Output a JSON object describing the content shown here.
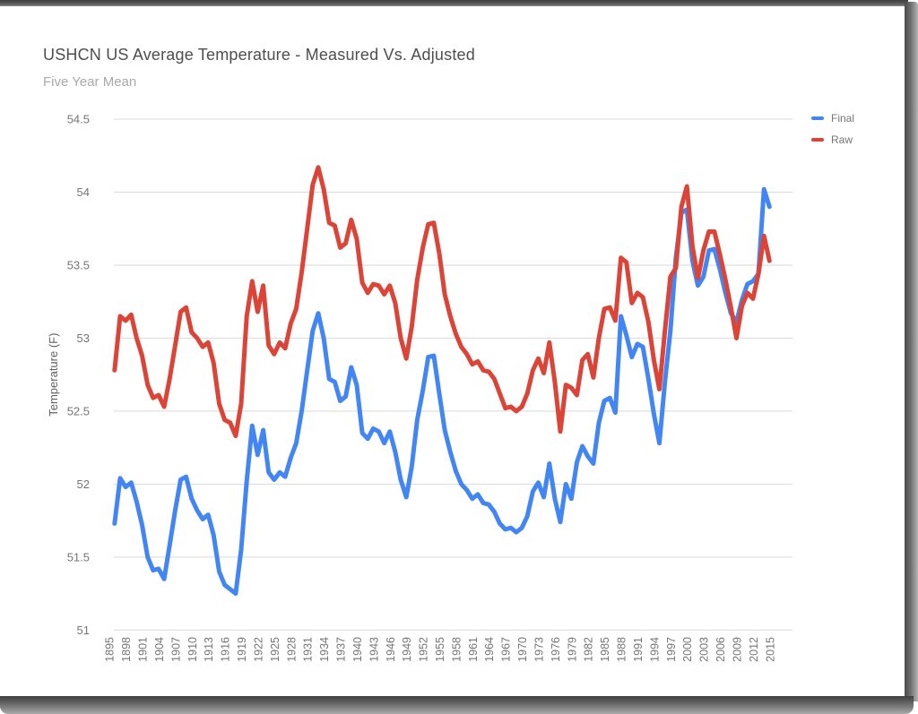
{
  "header": {
    "title": "USHCN US Average Temperature - Measured Vs. Adjusted",
    "subtitle": "Five Year Mean"
  },
  "legend": [
    {
      "label": "Final",
      "color": "#4285f4"
    },
    {
      "label": "Raw",
      "color": "#db4437"
    }
  ],
  "y_axis": {
    "title": "Temperature (F)",
    "ticks": [
      "54.5",
      "54",
      "53.5",
      "53",
      "52.5",
      "52",
      "51.5",
      "51"
    ]
  },
  "x_axis": {
    "ticks": [
      "1895",
      "1898",
      "1901",
      "1904",
      "1907",
      "1910",
      "1913",
      "1916",
      "1919",
      "1922",
      "1925",
      "1928",
      "1931",
      "1934",
      "1937",
      "1940",
      "1943",
      "1946",
      "1949",
      "1952",
      "1955",
      "1958",
      "1961",
      "1964",
      "1967",
      "1970",
      "1973",
      "1976",
      "1979",
      "1982",
      "1985",
      "1988",
      "1991",
      "1994",
      "1997",
      "2000",
      "2003",
      "2006",
      "2009",
      "2012",
      "2015"
    ]
  },
  "chart_data": {
    "type": "line",
    "title": "USHCN US Average Temperature - Measured Vs. Adjusted",
    "subtitle": "Five Year Mean",
    "xlabel": "",
    "ylabel": "Temperature (F)",
    "ylim": [
      51,
      54.5
    ],
    "xlim": [
      1895,
      2015
    ],
    "grid": "horizontal",
    "legend_position": "right",
    "x": [
      1896,
      1897,
      1898,
      1899,
      1900,
      1901,
      1902,
      1903,
      1904,
      1905,
      1906,
      1907,
      1908,
      1909,
      1910,
      1911,
      1912,
      1913,
      1914,
      1915,
      1916,
      1917,
      1918,
      1919,
      1920,
      1921,
      1922,
      1923,
      1924,
      1925,
      1926,
      1927,
      1928,
      1929,
      1930,
      1931,
      1932,
      1933,
      1934,
      1935,
      1936,
      1937,
      1938,
      1939,
      1940,
      1941,
      1942,
      1943,
      1944,
      1945,
      1946,
      1947,
      1948,
      1949,
      1950,
      1951,
      1952,
      1953,
      1954,
      1955,
      1956,
      1957,
      1958,
      1959,
      1960,
      1961,
      1962,
      1963,
      1964,
      1965,
      1966,
      1967,
      1968,
      1969,
      1970,
      1971,
      1972,
      1973,
      1974,
      1975,
      1976,
      1977,
      1978,
      1979,
      1980,
      1981,
      1982,
      1983,
      1984,
      1985,
      1986,
      1987,
      1988,
      1989,
      1990,
      1991,
      1992,
      1993,
      1994,
      1995,
      1996,
      1997,
      1998,
      1999,
      2000,
      2001,
      2002,
      2003,
      2004,
      2005,
      2006,
      2007,
      2008,
      2009,
      2010,
      2011,
      2012,
      2013,
      2014,
      2015
    ],
    "series": [
      {
        "name": "Final",
        "color": "#4285f4",
        "values": [
          51.73,
          52.04,
          51.98,
          52.01,
          51.88,
          51.72,
          51.5,
          51.41,
          51.42,
          51.35,
          51.58,
          51.82,
          52.03,
          52.05,
          51.9,
          51.82,
          51.76,
          51.79,
          51.65,
          51.4,
          51.31,
          51.28,
          51.25,
          51.55,
          52.02,
          52.4,
          52.2,
          52.37,
          52.08,
          52.03,
          52.08,
          52.05,
          52.18,
          52.28,
          52.5,
          52.78,
          53.05,
          53.17,
          53.0,
          52.72,
          52.7,
          52.57,
          52.6,
          52.8,
          52.68,
          52.35,
          52.31,
          52.38,
          52.36,
          52.28,
          52.36,
          52.22,
          52.03,
          51.91,
          52.12,
          52.44,
          52.64,
          52.87,
          52.88,
          52.62,
          52.37,
          52.22,
          52.09,
          52.0,
          51.96,
          51.9,
          51.93,
          51.87,
          51.86,
          51.81,
          51.73,
          51.69,
          51.7,
          51.67,
          51.7,
          51.78,
          51.95,
          52.01,
          51.91,
          52.14,
          51.9,
          51.74,
          52.0,
          51.9,
          52.15,
          52.26,
          52.19,
          52.14,
          52.42,
          52.57,
          52.59,
          52.49,
          53.15,
          53.02,
          52.87,
          52.96,
          52.94,
          52.72,
          52.48,
          52.28,
          52.7,
          53.05,
          53.55,
          53.86,
          53.88,
          53.53,
          53.36,
          53.42,
          53.6,
          53.61,
          53.47,
          53.31,
          53.17,
          53.11,
          53.26,
          53.37,
          53.39,
          53.44,
          54.02,
          53.9
        ]
      },
      {
        "name": "Raw",
        "color": "#db4437",
        "values": [
          52.78,
          53.15,
          53.12,
          53.16,
          53.0,
          52.88,
          52.68,
          52.59,
          52.61,
          52.53,
          52.72,
          52.95,
          53.18,
          53.21,
          53.04,
          53.0,
          52.94,
          52.97,
          52.83,
          52.55,
          52.44,
          52.42,
          52.33,
          52.55,
          53.15,
          53.39,
          53.18,
          53.36,
          52.95,
          52.89,
          52.97,
          52.93,
          53.1,
          53.2,
          53.45,
          53.75,
          54.05,
          54.17,
          54.02,
          53.79,
          53.77,
          53.62,
          53.65,
          53.81,
          53.68,
          53.38,
          53.31,
          53.37,
          53.36,
          53.3,
          53.36,
          53.24,
          53.0,
          52.86,
          53.08,
          53.4,
          53.62,
          53.78,
          53.79,
          53.58,
          53.3,
          53.15,
          53.03,
          52.94,
          52.89,
          52.82,
          52.84,
          52.78,
          52.77,
          52.72,
          52.62,
          52.52,
          52.53,
          52.5,
          52.53,
          52.62,
          52.78,
          52.86,
          52.76,
          52.97,
          52.7,
          52.36,
          52.68,
          52.66,
          52.61,
          52.85,
          52.89,
          52.73,
          53.0,
          53.2,
          53.21,
          53.12,
          53.55,
          53.52,
          53.24,
          53.31,
          53.28,
          53.11,
          52.85,
          52.65,
          53.05,
          53.42,
          53.48,
          53.9,
          54.04,
          53.63,
          53.41,
          53.6,
          53.73,
          53.73,
          53.57,
          53.4,
          53.21,
          53.0,
          53.22,
          53.31,
          53.27,
          53.44,
          53.7,
          53.53
        ]
      }
    ],
    "style": {
      "line_width": 5,
      "gridline_color": "#d9d9d9",
      "tick_label_color": "#757575",
      "axis_title_color": "#616161",
      "title_color": "#4e4e4e",
      "subtitle_color": "#a9a9a9"
    }
  }
}
